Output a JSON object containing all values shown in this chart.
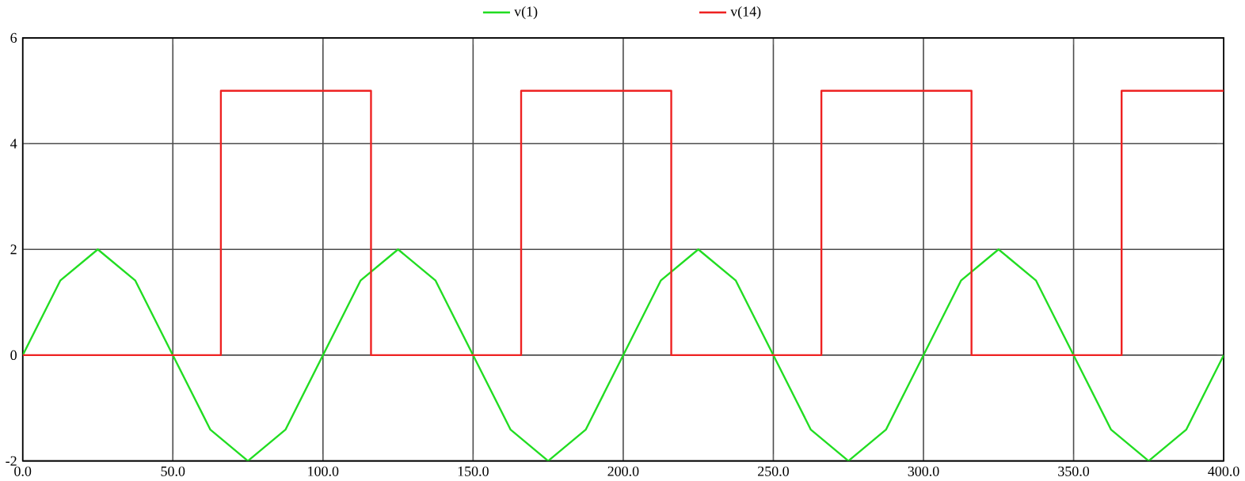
{
  "chart_data": {
    "type": "line",
    "series": [
      {
        "name": "v(1)",
        "color": "#22dd22",
        "x": [
          0,
          12.5,
          25,
          37.5,
          50,
          62.5,
          75,
          87.5,
          100,
          112.5,
          125,
          137.5,
          150,
          162.5,
          175,
          187.5,
          200,
          212.5,
          225,
          237.5,
          250,
          262.5,
          275,
          287.5,
          300,
          312.5,
          325,
          337.5,
          350,
          362.5,
          375,
          387.5,
          400
        ],
        "values": [
          0,
          1.41,
          2,
          1.41,
          0,
          -1.41,
          -2,
          -1.41,
          0,
          1.41,
          2,
          1.41,
          0,
          -1.41,
          -2,
          -1.41,
          0,
          1.41,
          2,
          1.41,
          0,
          -1.41,
          -2,
          -1.41,
          0,
          1.41,
          2,
          1.41,
          0,
          -1.41,
          -2,
          -1.41,
          0
        ]
      },
      {
        "name": "v(14)",
        "color": "#ee2222",
        "x": [
          0,
          66,
          66,
          116,
          116,
          166,
          166,
          216,
          216,
          266,
          266,
          316,
          316,
          366,
          366,
          400
        ],
        "values": [
          0,
          0,
          5,
          5,
          0,
          0,
          5,
          5,
          0,
          0,
          5,
          5,
          0,
          0,
          5,
          5
        ]
      }
    ],
    "xlim": [
      0,
      400
    ],
    "xticks": [
      {
        "value": 0,
        "label": "0.0"
      },
      {
        "value": 50,
        "label": "50.0"
      },
      {
        "value": 100,
        "label": "100.0"
      },
      {
        "value": 150,
        "label": "150.0"
      },
      {
        "value": 200,
        "label": "200.0"
      },
      {
        "value": 250,
        "label": "250.0"
      },
      {
        "value": 300,
        "label": "300.0"
      },
      {
        "value": 350,
        "label": "350.0"
      },
      {
        "value": 400,
        "label": "400.0"
      }
    ],
    "ylim": [
      -2,
      6
    ],
    "yticks": [
      -2,
      0,
      2,
      4,
      6
    ],
    "grid": true,
    "legend": "top",
    "marker": "none",
    "line_style": "solid"
  }
}
